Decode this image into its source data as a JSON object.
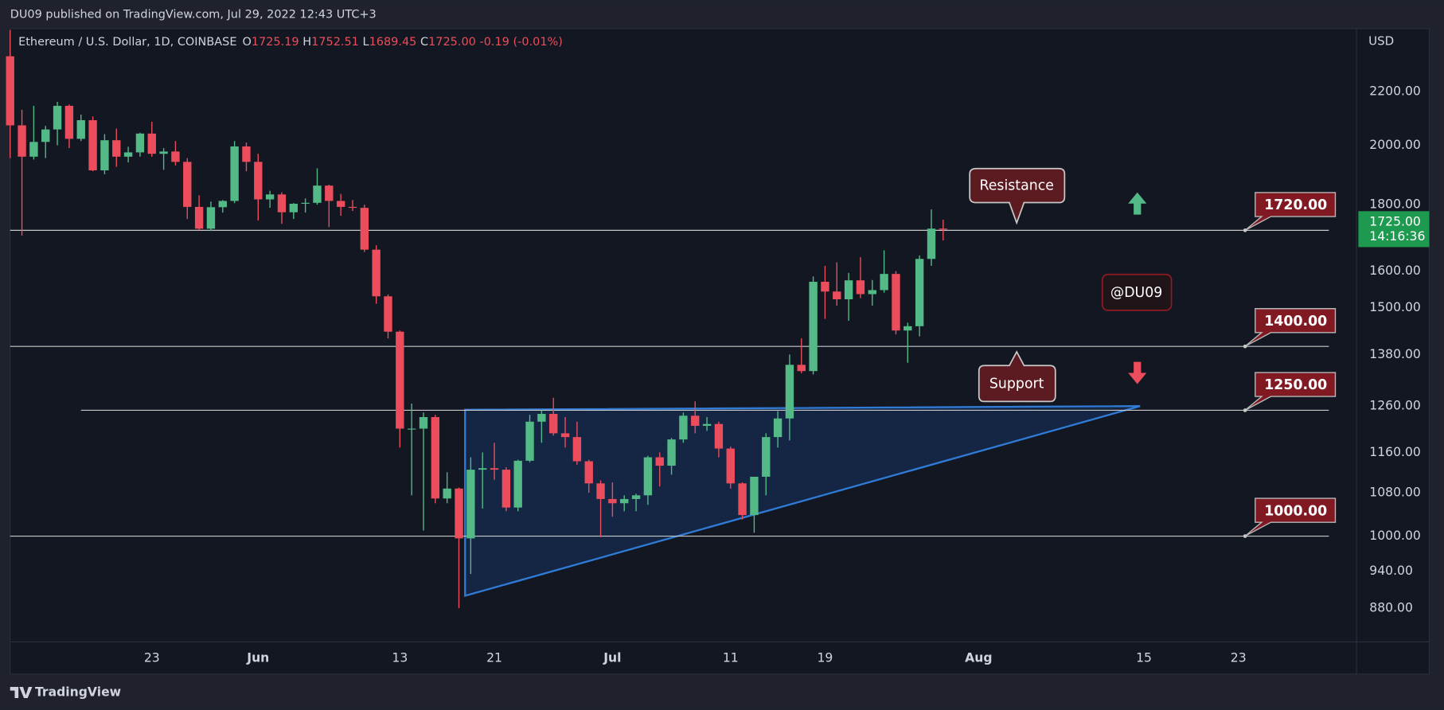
{
  "publisher": "DU09 published on TradingView.com, Jul 29, 2022 12:43 UTC+3",
  "footer": "TradingView",
  "chart_data": {
    "type": "candlestick",
    "symbol": "Ethereum / U.S. Dollar, 1D, COINBASE",
    "ohlc_legend": [
      {
        "key": "O",
        "value": "1725.19"
      },
      {
        "key": "H",
        "value": "1752.51"
      },
      {
        "key": "L",
        "value": "1689.45"
      },
      {
        "key": "C",
        "value": "1725.00"
      }
    ],
    "change": "-0.19 (-0.01%)",
    "currency": "USD",
    "up_color": "#53b987",
    "down_color": "#eb4d5c",
    "log": true,
    "grid": false,
    "ylim": [
      829,
      2460
    ],
    "yticks": [
      {
        "value": 880,
        "label": "880.00"
      },
      {
        "value": 940,
        "label": "940.00"
      },
      {
        "value": 1000,
        "label": "1000.00"
      },
      {
        "value": 1080,
        "label": "1080.00"
      },
      {
        "value": 1160,
        "label": "1160.00"
      },
      {
        "value": 1260,
        "label": "1260.00"
      },
      {
        "value": 1380,
        "label": "1380.00"
      },
      {
        "value": 1500,
        "label": "1500.00"
      },
      {
        "value": 1600,
        "label": "1600.00"
      },
      {
        "value": 1800,
        "label": "1800.00"
      },
      {
        "value": 2000,
        "label": "2000.00"
      },
      {
        "value": 2200,
        "label": "2200.00"
      }
    ],
    "xlim": [
      "2022-05-11",
      "2022-09-02"
    ],
    "xticks": [
      {
        "value": "2022-05-23",
        "label": "23"
      },
      {
        "value": "2022-06-01",
        "label": "Jun"
      },
      {
        "value": "2022-06-13",
        "label": "13"
      },
      {
        "value": "2022-06-21",
        "label": "21"
      },
      {
        "value": "2022-07-01",
        "label": "Jul"
      },
      {
        "value": "2022-07-11",
        "label": "11"
      },
      {
        "value": "2022-07-19",
        "label": "19"
      },
      {
        "value": "2022-08-01",
        "label": "Aug"
      },
      {
        "value": "2022-08-15",
        "label": "15"
      },
      {
        "value": "2022-08-23",
        "label": "23"
      }
    ],
    "x": [
      "2022-05-11",
      "2022-05-12",
      "2022-05-13",
      "2022-05-14",
      "2022-05-15",
      "2022-05-16",
      "2022-05-17",
      "2022-05-18",
      "2022-05-19",
      "2022-05-20",
      "2022-05-21",
      "2022-05-22",
      "2022-05-23",
      "2022-05-24",
      "2022-05-25",
      "2022-05-26",
      "2022-05-27",
      "2022-05-28",
      "2022-05-29",
      "2022-05-30",
      "2022-05-31",
      "2022-06-01",
      "2022-06-02",
      "2022-06-03",
      "2022-06-04",
      "2022-06-05",
      "2022-06-06",
      "2022-06-07",
      "2022-06-08",
      "2022-06-09",
      "2022-06-10",
      "2022-06-11",
      "2022-06-12",
      "2022-06-13",
      "2022-06-14",
      "2022-06-15",
      "2022-06-16",
      "2022-06-17",
      "2022-06-18",
      "2022-06-19",
      "2022-06-20",
      "2022-06-21",
      "2022-06-22",
      "2022-06-23",
      "2022-06-24",
      "2022-06-25",
      "2022-06-26",
      "2022-06-27",
      "2022-06-28",
      "2022-06-29",
      "2022-06-30",
      "2022-07-01",
      "2022-07-02",
      "2022-07-03",
      "2022-07-04",
      "2022-07-05",
      "2022-07-06",
      "2022-07-07",
      "2022-07-08",
      "2022-07-09",
      "2022-07-10",
      "2022-07-11",
      "2022-07-12",
      "2022-07-13",
      "2022-07-14",
      "2022-07-15",
      "2022-07-16",
      "2022-07-17",
      "2022-07-18",
      "2022-07-19",
      "2022-07-20",
      "2022-07-21",
      "2022-07-22",
      "2022-07-23",
      "2022-07-24",
      "2022-07-25",
      "2022-07-26",
      "2022-07-27",
      "2022-07-28",
      "2022-07-29"
    ],
    "open": [
      2342,
      2072,
      1960,
      2012,
      2057,
      2145,
      2023,
      2091,
      1913,
      2018,
      1960,
      1975,
      2042,
      1970,
      1978,
      1942,
      1793,
      1725,
      1792,
      1812,
      1996,
      1942,
      1817,
      1833,
      1776,
      1803,
      1806,
      1862,
      1812,
      1793,
      1790,
      1662,
      1530,
      1437,
      1210,
      1210,
      1235,
      1069,
      1088,
      996,
      1125,
      1128,
      1125,
      1052,
      1143,
      1225,
      1242,
      1200,
      1192,
      1142,
      1098,
      1068,
      1060,
      1068,
      1075,
      1150,
      1133,
      1187,
      1238,
      1216,
      1220,
      1168,
      1098,
      1038,
      1111,
      1192,
      1232,
      1355,
      1340,
      1570,
      1543,
      1522,
      1574,
      1536,
      1547,
      1592,
      1440,
      1451,
      1635,
      1725.19
    ],
    "high": [
      2454,
      2130,
      2145,
      2070,
      2160,
      2150,
      2112,
      2105,
      2040,
      2060,
      1995,
      2045,
      2085,
      1990,
      2015,
      1955,
      1830,
      1810,
      1815,
      2015,
      2010,
      1970,
      1845,
      1840,
      1805,
      1820,
      1920,
      1865,
      1835,
      1815,
      1800,
      1675,
      1535,
      1440,
      1265,
      1245,
      1240,
      1120,
      1090,
      1150,
      1160,
      1180,
      1130,
      1145,
      1240,
      1250,
      1278,
      1235,
      1225,
      1145,
      1104,
      1100,
      1075,
      1078,
      1153,
      1160,
      1190,
      1245,
      1270,
      1235,
      1225,
      1172,
      1100,
      1110,
      1200,
      1248,
      1380,
      1420,
      1585,
      1615,
      1625,
      1595,
      1640,
      1575,
      1660,
      1600,
      1460,
      1645,
      1785,
      1752.51
    ],
    "low": [
      1955,
      1704,
      1950,
      1955,
      2000,
      1990,
      2015,
      1910,
      1900,
      1925,
      1940,
      1960,
      1960,
      1915,
      1930,
      1755,
      1720,
      1718,
      1775,
      1805,
      1910,
      1750,
      1790,
      1740,
      1755,
      1775,
      1800,
      1730,
      1765,
      1780,
      1655,
      1510,
      1420,
      1170,
      1075,
      1010,
      1060,
      1060,
      880,
      935,
      1050,
      1105,
      1045,
      1045,
      1140,
      1180,
      1195,
      1170,
      1135,
      1080,
      998,
      1035,
      1045,
      1045,
      1057,
      1092,
      1115,
      1180,
      1200,
      1205,
      1150,
      1088,
      1030,
      1006,
      1075,
      1170,
      1185,
      1335,
      1332,
      1470,
      1505,
      1465,
      1525,
      1505,
      1540,
      1430,
      1360,
      1425,
      1615,
      1689.45
    ],
    "close": [
      2072,
      1960,
      2012,
      2057,
      2145,
      2023,
      2091,
      1913,
      2018,
      1960,
      1975,
      2042,
      1970,
      1978,
      1942,
      1793,
      1725,
      1792,
      1812,
      1996,
      1942,
      1817,
      1833,
      1776,
      1803,
      1806,
      1862,
      1812,
      1793,
      1790,
      1662,
      1530,
      1437,
      1210,
      1210,
      1235,
      1069,
      1088,
      996,
      1125,
      1128,
      1125,
      1052,
      1143,
      1225,
      1242,
      1200,
      1192,
      1142,
      1098,
      1068,
      1060,
      1068,
      1075,
      1150,
      1133,
      1187,
      1238,
      1216,
      1220,
      1168,
      1098,
      1038,
      1111,
      1192,
      1232,
      1355,
      1340,
      1570,
      1543,
      1522,
      1574,
      1536,
      1547,
      1592,
      1440,
      1451,
      1635,
      1725.19,
      1725.0
    ],
    "levels": [
      {
        "value": 1720,
        "label": "1720.00"
      },
      {
        "value": 1400,
        "label": "1400.00"
      },
      {
        "value": 1250,
        "label": "1250.00",
        "from": "2022-05-17"
      },
      {
        "value": 1000,
        "label": "1000.00"
      }
    ],
    "last_price_label": "1725.00",
    "countdown": "14:16:36",
    "annotations": {
      "resistance": "Resistance",
      "support": "Support",
      "watermark": "@DU09"
    }
  }
}
